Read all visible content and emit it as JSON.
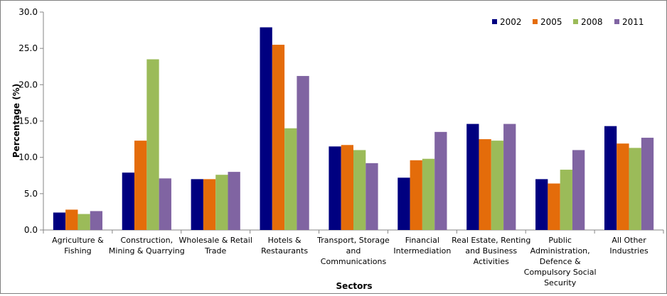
{
  "chart_data": {
    "type": "bar",
    "xlabel": "Sectors",
    "ylabel": "Percentage (%)",
    "ylim": [
      0,
      30
    ],
    "y_ticks": [
      "0.0",
      "5.0",
      "10.0",
      "15.0",
      "20.0",
      "25.0",
      "30.0"
    ],
    "grid": false,
    "legend_position": "top-right",
    "categories": [
      "Agriculture & Fishing",
      "Construction, Mining & Quarrying",
      "Wholesale & Retail Trade",
      "Hotels & Restaurants",
      "Transport, Storage and Communications",
      "Financial Intermediation",
      "Real Estate, Renting and Business Activities",
      "Public Administration, Defence & Compulsory Social Security",
      "All Other Industries"
    ],
    "category_lines": [
      [
        "Agriculture &",
        "Fishing"
      ],
      [
        "Construction,",
        "Mining & Quarrying"
      ],
      [
        "Wholesale & Retail",
        "Trade"
      ],
      [
        "Hotels &",
        "Restaurants"
      ],
      [
        "Transport, Storage",
        "and",
        "Communications"
      ],
      [
        "Financial",
        "Intermediation"
      ],
      [
        "Real Estate, Renting",
        "and Business",
        "Activities"
      ],
      [
        "Public",
        "Administration,",
        "Defence &",
        "Compulsory Social",
        "Security"
      ],
      [
        "All Other",
        "Industries"
      ]
    ],
    "series": [
      {
        "name": "2002",
        "color": "#000080",
        "values": [
          2.4,
          7.9,
          7.0,
          27.9,
          11.5,
          7.2,
          14.6,
          7.0,
          14.3
        ]
      },
      {
        "name": "2005",
        "color": "#e46c0a",
        "values": [
          2.8,
          12.3,
          7.0,
          25.5,
          11.7,
          9.6,
          12.5,
          6.4,
          11.9
        ]
      },
      {
        "name": "2008",
        "color": "#9bbb59",
        "values": [
          2.2,
          23.5,
          7.6,
          14.0,
          11.0,
          9.8,
          12.3,
          8.3,
          11.3
        ]
      },
      {
        "name": "2011",
        "color": "#8064a2",
        "values": [
          2.6,
          7.1,
          8.0,
          21.2,
          9.2,
          13.5,
          14.6,
          11.0,
          12.7
        ]
      }
    ]
  }
}
